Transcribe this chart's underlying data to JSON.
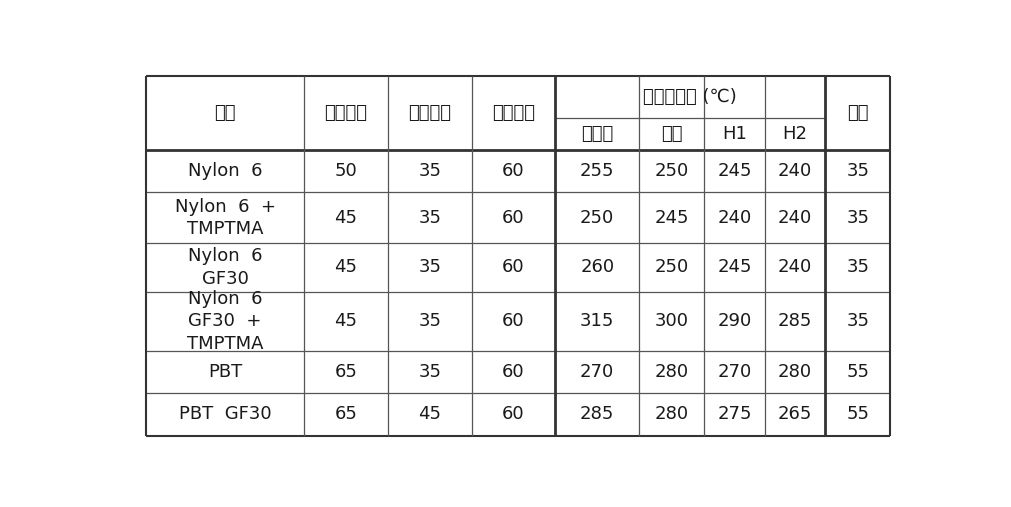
{
  "background_color": "#ffffff",
  "text_color": "#1a1a1a",
  "border_color": "#333333",
  "line_color": "#555555",
  "header1_korean": [
    "재료",
    "사출압력",
    "사출속도",
    "금형온도",
    "실린더온도 (℃)",
    "보압"
  ],
  "header2_korean": [
    "장노즐",
    "노즐",
    "H1",
    "H2"
  ],
  "rows": [
    [
      "Nylon  6",
      "50",
      "35",
      "60",
      "255",
      "250",
      "245",
      "240",
      "35"
    ],
    [
      "Nylon  6  +\nTMPTMA",
      "45",
      "35",
      "60",
      "250",
      "245",
      "240",
      "240",
      "35"
    ],
    [
      "Nylon  6\nGF30",
      "45",
      "35",
      "60",
      "260",
      "250",
      "245",
      "240",
      "35"
    ],
    [
      "Nylon  6\nGF30  +\nTMPTMA",
      "45",
      "35",
      "60",
      "315",
      "300",
      "290",
      "285",
      "35"
    ],
    [
      "PBT",
      "65",
      "35",
      "60",
      "270",
      "280",
      "270",
      "280",
      "55"
    ],
    [
      "PBT  GF30",
      "65",
      "45",
      "60",
      "285",
      "280",
      "275",
      "265",
      "55"
    ]
  ],
  "col_widths_rel": [
    1.7,
    0.9,
    0.9,
    0.9,
    0.9,
    0.7,
    0.65,
    0.65,
    0.7
  ],
  "font_size": 13,
  "lw_outer": 1.5,
  "lw_thick": 2.0,
  "lw_inner": 0.9
}
